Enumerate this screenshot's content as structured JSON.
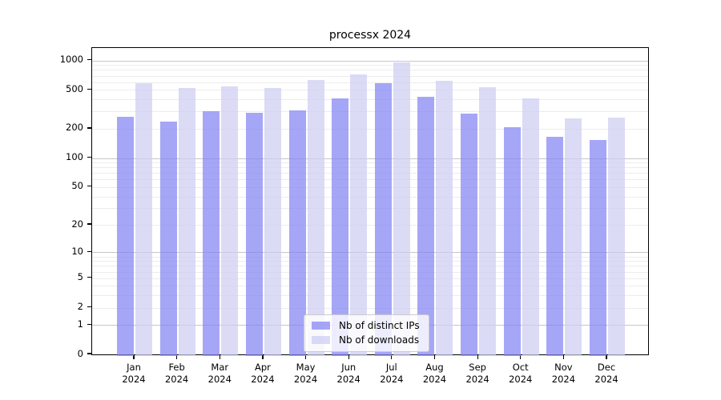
{
  "chart_data": {
    "type": "bar",
    "title": "processx 2024",
    "categories": [
      "Jan",
      "Feb",
      "Mar",
      "Apr",
      "May",
      "Jun",
      "Jul",
      "Aug",
      "Sep",
      "Oct",
      "Nov",
      "Dec"
    ],
    "category_sublabel": "2024",
    "series": [
      {
        "name": "Nb of distinct IPs",
        "color": "rgba(131,131,244,0.72)",
        "solid_color": "#a6a6f5",
        "values": [
          267,
          235,
          302,
          289,
          311,
          411,
          583,
          426,
          287,
          209,
          166,
          154
        ]
      },
      {
        "name": "Nb of downloads",
        "color": "rgba(205,205,243,0.72)",
        "solid_color": "#dcdcf8",
        "values": [
          591,
          521,
          548,
          521,
          634,
          726,
          953,
          622,
          531,
          413,
          257,
          261
        ]
      }
    ],
    "yscale": "log1p",
    "ylim": [
      0,
      1000
    ],
    "yticks": [
      1000,
      500,
      200,
      100,
      50,
      20,
      10,
      5,
      2,
      1,
      0
    ],
    "xlabel": "",
    "ylabel": "",
    "grid": true,
    "grid_major_color": "#c6c6c6",
    "grid_minor_color": "#ececec",
    "legend_position": "lower center",
    "background": "#ffffff"
  }
}
